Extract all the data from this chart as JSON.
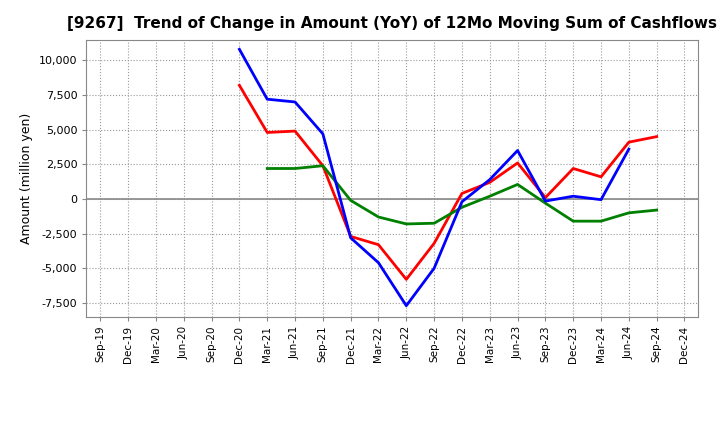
{
  "title": "[9267]  Trend of Change in Amount (YoY) of 12Mo Moving Sum of Cashflows",
  "ylabel": "Amount (million yen)",
  "x_labels": [
    "Sep-19",
    "Dec-19",
    "Mar-20",
    "Jun-20",
    "Sep-20",
    "Dec-20",
    "Mar-21",
    "Jun-21",
    "Sep-21",
    "Dec-21",
    "Mar-22",
    "Jun-22",
    "Sep-22",
    "Dec-22",
    "Mar-23",
    "Jun-23",
    "Sep-23",
    "Dec-23",
    "Mar-24",
    "Jun-24",
    "Sep-24",
    "Dec-24"
  ],
  "operating": [
    null,
    null,
    null,
    null,
    null,
    8200,
    4800,
    4900,
    2400,
    -2700,
    -3300,
    -5800,
    -3200,
    400,
    1200,
    2600,
    100,
    2200,
    1600,
    4100,
    4500,
    null
  ],
  "investing": [
    null,
    null,
    null,
    null,
    null,
    null,
    2200,
    2200,
    2400,
    -100,
    -1300,
    -1800,
    -1750,
    -600,
    200,
    1050,
    -300,
    -1600,
    -1600,
    -1000,
    -800,
    null
  ],
  "free": [
    null,
    null,
    null,
    null,
    null,
    10800,
    7200,
    7000,
    4700,
    -2800,
    -4600,
    -7700,
    -5000,
    -200,
    1400,
    3500,
    -150,
    200,
    -50,
    3600,
    null,
    null
  ],
  "operating_color": "#FF0000",
  "investing_color": "#008000",
  "free_color": "#0000FF",
  "ylim": [
    -8500,
    11500
  ],
  "yticks": [
    -7500,
    -5000,
    -2500,
    0,
    2500,
    5000,
    7500,
    10000
  ],
  "background_color": "#FFFFFF",
  "plot_bg_color": "#FFFFFF",
  "grid_color": "#999999",
  "zero_line_color": "#888888",
  "spine_color": "#888888"
}
